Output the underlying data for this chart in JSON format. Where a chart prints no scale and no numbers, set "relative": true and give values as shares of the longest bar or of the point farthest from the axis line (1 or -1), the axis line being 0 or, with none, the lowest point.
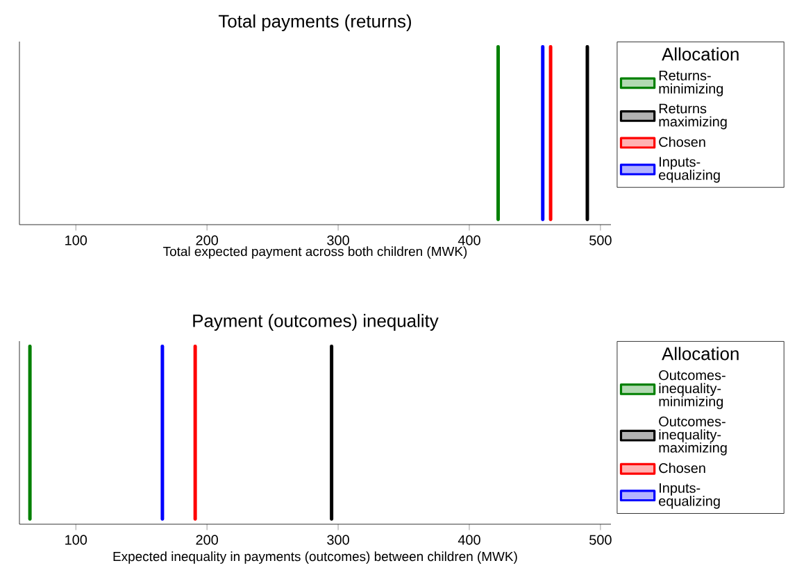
{
  "chart_data": [
    {
      "type": "line",
      "relative": true,
      "title": "Total payments (returns)",
      "xlabel": "Total expected payment across both children (MWK)",
      "xlim": [
        57,
        508
      ],
      "xticks": [
        100,
        200,
        300,
        400,
        500
      ],
      "tick_labels": "x",
      "legend": "right",
      "legend_title": "Allocation",
      "series": [
        {
          "name": "Returns-minimizing",
          "color": "#008000",
          "x": [
            422,
            422
          ],
          "values": [
            0,
            1
          ]
        },
        {
          "name": "Returns maximizing",
          "color": "#000000",
          "x": [
            490,
            490
          ],
          "values": [
            0,
            1
          ]
        },
        {
          "name": "Chosen",
          "color": "#ff0000",
          "x": [
            462,
            462
          ],
          "values": [
            0,
            1
          ]
        },
        {
          "name": "Inputs-equalizing",
          "color": "#0000ff",
          "x": [
            456,
            456
          ],
          "values": [
            0,
            1
          ]
        }
      ]
    },
    {
      "type": "line",
      "relative": true,
      "title": "Payment (outcomes) inequality",
      "xlabel": "Expected inequality in payments (outcomes) between children (MWK)",
      "xlim": [
        57,
        508
      ],
      "xticks": [
        100,
        200,
        300,
        400,
        500
      ],
      "tick_labels": "x",
      "legend": "right",
      "legend_title": "Allocation",
      "series": [
        {
          "name": "Outcomes-inequality-minimizing",
          "color": "#008000",
          "x": [
            65,
            65
          ],
          "values": [
            0,
            1
          ]
        },
        {
          "name": "Outcomes-inequality-maximizing",
          "color": "#000000",
          "x": [
            295,
            295
          ],
          "values": [
            0,
            1
          ]
        },
        {
          "name": "Chosen",
          "color": "#ff0000",
          "x": [
            191,
            191
          ],
          "values": [
            0,
            1
          ]
        },
        {
          "name": "Inputs-equalizing",
          "color": "#0000ff",
          "x": [
            166,
            166
          ],
          "values": [
            0,
            1
          ]
        }
      ]
    }
  ]
}
